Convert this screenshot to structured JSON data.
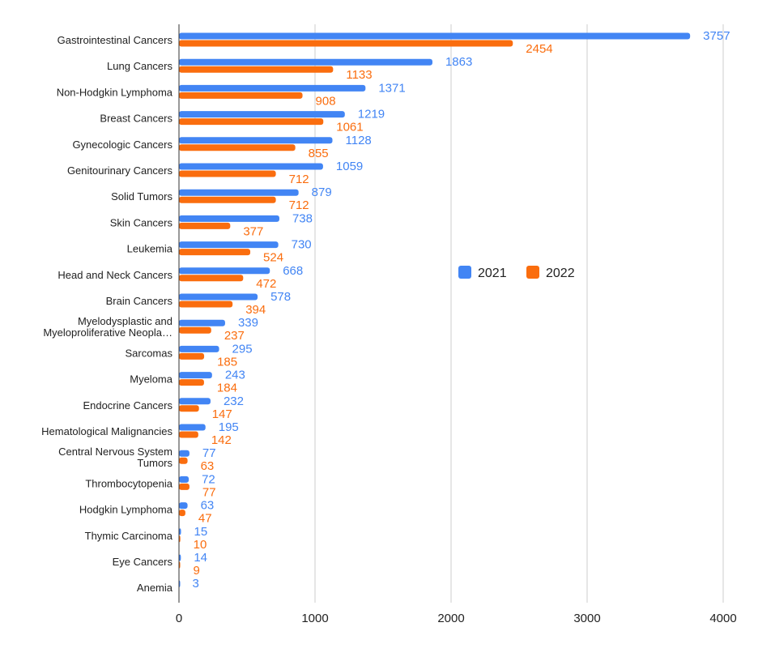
{
  "chart_data": {
    "type": "bar",
    "orientation": "horizontal",
    "title": "",
    "xlabel": "",
    "ylabel": "",
    "xlim": [
      0,
      4000
    ],
    "x_ticks": [
      0,
      1000,
      2000,
      3000,
      4000
    ],
    "grid": "vertical",
    "legend_position": "right",
    "categories": [
      "Gastrointestinal Cancers",
      "Lung Cancers",
      "Non-Hodgkin Lymphoma",
      "Breast Cancers",
      "Gynecologic Cancers",
      "Genitourinary Cancers",
      "Solid Tumors",
      "Skin Cancers",
      "Leukemia",
      "Head and Neck Cancers",
      "Brain Cancers",
      "Myelodysplastic and Myeloproliferative Neopla…",
      "Sarcomas",
      "Myeloma",
      "Endocrine Cancers",
      "Hematological Malignancies",
      "Central Nervous System Tumors",
      "Thrombocytopenia",
      "Hodgkin Lymphoma",
      "Thymic Carcinoma",
      "Eye Cancers",
      "Anemia"
    ],
    "category_label_lines": [
      [
        "Gastrointestinal Cancers"
      ],
      [
        "Lung Cancers"
      ],
      [
        "Non-Hodgkin Lymphoma"
      ],
      [
        "Breast Cancers"
      ],
      [
        "Gynecologic Cancers"
      ],
      [
        "Genitourinary Cancers"
      ],
      [
        "Solid Tumors"
      ],
      [
        "Skin Cancers"
      ],
      [
        "Leukemia"
      ],
      [
        "Head and Neck Cancers"
      ],
      [
        "Brain Cancers"
      ],
      [
        "Myelodysplastic and",
        "Myeloproliferative Neopla…"
      ],
      [
        "Sarcomas"
      ],
      [
        "Myeloma"
      ],
      [
        "Endocrine Cancers"
      ],
      [
        "Hematological Malignancies"
      ],
      [
        "Central Nervous System",
        "Tumors"
      ],
      [
        "Thrombocytopenia"
      ],
      [
        "Hodgkin Lymphoma"
      ],
      [
        "Thymic Carcinoma"
      ],
      [
        "Eye Cancers"
      ],
      [
        "Anemia"
      ]
    ],
    "series": [
      {
        "name": "2021",
        "color": "#4285f4",
        "values": [
          3757,
          1863,
          1371,
          1219,
          1128,
          1059,
          879,
          738,
          730,
          668,
          578,
          339,
          295,
          243,
          232,
          195,
          77,
          72,
          63,
          15,
          14,
          3
        ]
      },
      {
        "name": "2022",
        "color": "#fa6d0e",
        "values": [
          2454,
          1133,
          908,
          1061,
          855,
          712,
          712,
          377,
          524,
          472,
          394,
          237,
          185,
          184,
          147,
          142,
          63,
          77,
          47,
          10,
          9,
          null
        ]
      }
    ]
  }
}
